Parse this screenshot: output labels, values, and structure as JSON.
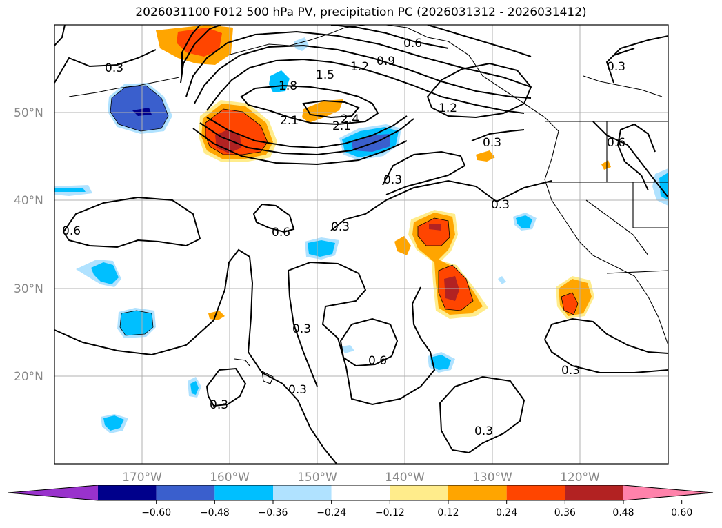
{
  "title": "2026031100 F012 500 hPa PV, precipitation PC (2026031312 - 2026031412)",
  "map": {
    "lat_labels": [
      "50°N",
      "40°N",
      "30°N",
      "20°N"
    ],
    "lon_labels": [
      "170°W",
      "160°W",
      "150°W",
      "140°W",
      "130°W",
      "120°W"
    ],
    "contour_labels": [
      "0.3",
      "0.6",
      "0.9",
      "1.2",
      "1.5",
      "1.8",
      "2.1",
      "2.4"
    ]
  },
  "colorbar": {
    "colors": [
      "#9932cc",
      "#00008b",
      "#3a5fcd",
      "#00bfff",
      "#b0e2ff",
      "#ffffff",
      "#ffec8b",
      "#ffa500",
      "#ff4500",
      "#b22222",
      "#ff82ab"
    ],
    "labels": [
      "−0.60",
      "−0.48",
      "−0.36",
      "−0.24",
      "−0.12",
      "0.12",
      "0.24",
      "0.36",
      "0.48",
      "0.60"
    ]
  }
}
